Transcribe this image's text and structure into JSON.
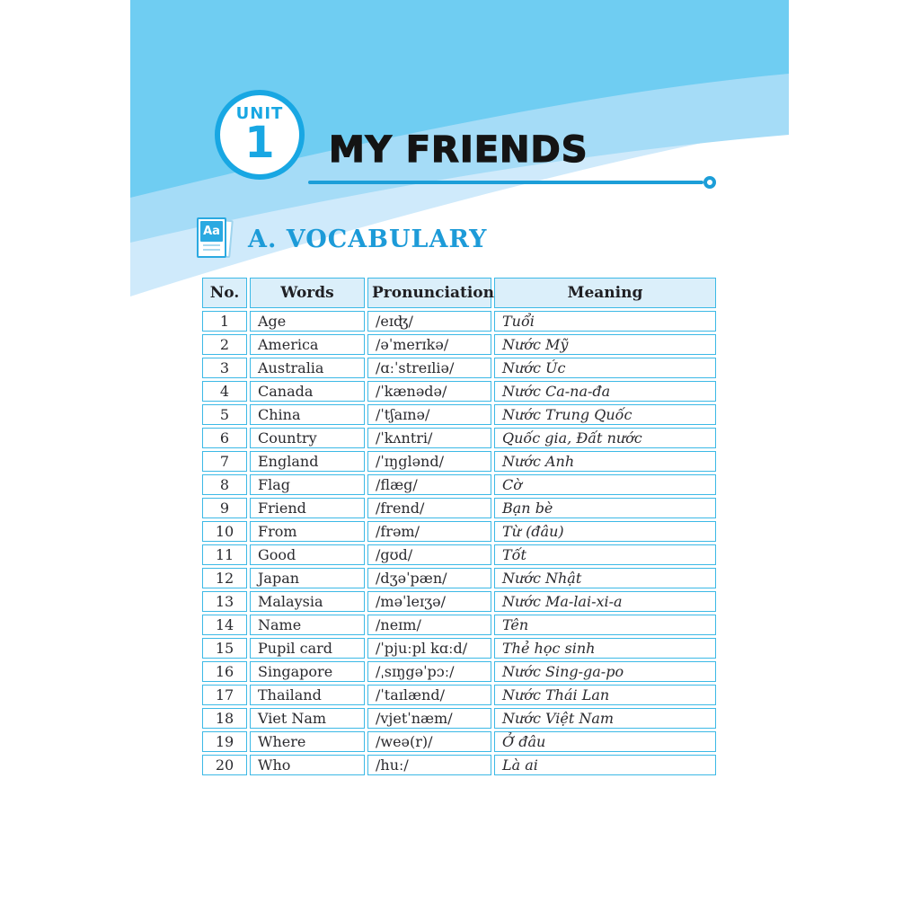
{
  "page": {
    "unit_label": "UNIT",
    "unit_number": "1",
    "title": "MY FRIENDS"
  },
  "section": {
    "label": "A. VOCABULARY",
    "icon_text": "Aa"
  },
  "table": {
    "headers": [
      "No.",
      "Words",
      "Pronunciation",
      "Meaning"
    ],
    "rows": [
      [
        "1",
        "Age",
        "/eɪʤ/",
        "Tuổi"
      ],
      [
        "2",
        "America",
        "/əˈmerɪkə/",
        "Nước Mỹ"
      ],
      [
        "3",
        "Australia",
        "/ɑːˈstreɪliə/",
        "Nước Úc"
      ],
      [
        "4",
        "Canada",
        "/ˈkænədə/",
        "Nước Ca-na-đa"
      ],
      [
        "5",
        "China",
        "/ˈtʃaɪnə/",
        "Nước Trung Quốc"
      ],
      [
        "6",
        "Country",
        "/ˈkʌntri/",
        "Quốc gia, Đất nước"
      ],
      [
        "7",
        "England",
        "/ˈɪŋglənd/",
        "Nước Anh"
      ],
      [
        "8",
        "Flag",
        "/flæg/",
        "Cờ"
      ],
      [
        "9",
        "Friend",
        "/frend/",
        "Bạn bè"
      ],
      [
        "10",
        "From",
        "/frəm/",
        "Từ (đâu)"
      ],
      [
        "11",
        "Good",
        "/gʊd/",
        "Tốt"
      ],
      [
        "12",
        "Japan",
        "/dʒəˈpæn/",
        "Nước Nhật"
      ],
      [
        "13",
        "Malaysia",
        "/məˈleɪʒə/",
        "Nước Ma-lai-xi-a"
      ],
      [
        "14",
        "Name",
        "/neɪm/",
        "Tên"
      ],
      [
        "15",
        "Pupil card",
        "/ˈpjuːpl kɑːd/",
        "Thẻ học sinh"
      ],
      [
        "16",
        "Singapore",
        "/ˌsɪŋgəˈpɔː/",
        "Nước Sing-ga-po"
      ],
      [
        "17",
        "Thailand",
        "/ˈtaɪlænd/",
        "Nước Thái Lan"
      ],
      [
        "18",
        "Viet Nam",
        "/vjetˈnæm/",
        "Nước Việt Nam"
      ],
      [
        "19",
        "Where",
        "/weə(r)/",
        "Ở đâu"
      ],
      [
        "20",
        "Who",
        "/huː/",
        "Là ai"
      ]
    ]
  },
  "colors": {
    "accent_blue": "#18a7e3",
    "rule_blue": "#1c9ed8",
    "swoosh_main": "#6fcdf2",
    "swoosh_mid": "#a5dcf7",
    "swoosh_light": "#cfeafb",
    "table_border": "#3cb9e6",
    "table_header_bg": "#dbeffa",
    "text_dark": "#26262b"
  }
}
